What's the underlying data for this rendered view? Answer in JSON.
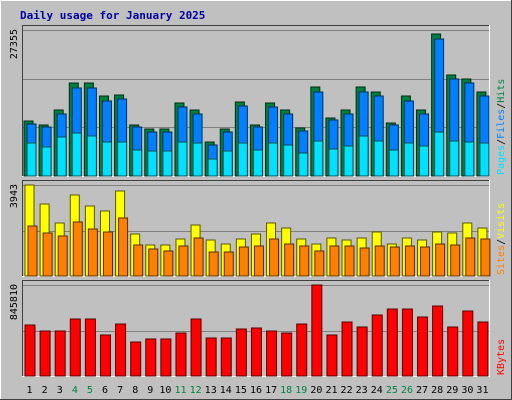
{
  "title": "Daily usage for January 2025",
  "colors": {
    "background": "#c0c0c0",
    "panel": "#c0c0c0",
    "grid": "#808080",
    "title": "#0000a0",
    "hits": "#008040",
    "files": "#0080ff",
    "pages": "#00e0ff",
    "visits": "#ffff00",
    "sites": "#ff8000",
    "kbytes": "#ff0000",
    "weekend_day": "#008040",
    "weekday": "#000000"
  },
  "chart_data": [
    {
      "type": "bar",
      "title": "Daily usage for January 2025",
      "ymax_label": "27355",
      "ylim": [
        0,
        27355
      ],
      "legend": [
        "Pages",
        "Files",
        "Hits"
      ],
      "categories": [
        "1",
        "2",
        "3",
        "4",
        "5",
        "6",
        "7",
        "8",
        "9",
        "10",
        "11",
        "12",
        "13",
        "14",
        "15",
        "16",
        "17",
        "18",
        "19",
        "20",
        "21",
        "22",
        "23",
        "24",
        "25",
        "26",
        "27",
        "28",
        "29",
        "30",
        "31"
      ],
      "series": [
        {
          "name": "Hits",
          "values": [
            10300,
            9600,
            12300,
            17400,
            17400,
            14900,
            15200,
            9600,
            8800,
            8800,
            13600,
            12300,
            6300,
            8800,
            13900,
            9600,
            13600,
            12300,
            9000,
            16600,
            10900,
            12300,
            16600,
            15700,
            10000,
            14900,
            12300,
            26600,
            19000,
            18200,
            15700
          ]
        },
        {
          "name": "Files",
          "values": [
            9800,
            9100,
            11600,
            16500,
            16500,
            14100,
            14500,
            9100,
            8300,
            8300,
            12900,
            11600,
            5900,
            8300,
            13200,
            9100,
            12900,
            11600,
            8500,
            15800,
            10400,
            11600,
            15800,
            14900,
            9500,
            14100,
            11600,
            25600,
            18200,
            17400,
            14900
          ]
        },
        {
          "name": "Pages",
          "values": [
            6200,
            5500,
            7300,
            8000,
            7500,
            6300,
            6300,
            4800,
            4600,
            4600,
            6300,
            6100,
            3100,
            4700,
            6100,
            4900,
            6200,
            5800,
            4400,
            6500,
            5000,
            5600,
            7500,
            6500,
            4900,
            6200,
            5600,
            8300,
            6500,
            6400,
            6200
          ]
        }
      ]
    },
    {
      "type": "bar",
      "ymax_label": "3943",
      "ylim": [
        0,
        3943
      ],
      "legend": [
        "Sites",
        "Visits"
      ],
      "categories": [
        "1",
        "2",
        "3",
        "4",
        "5",
        "6",
        "7",
        "8",
        "9",
        "10",
        "11",
        "12",
        "13",
        "14",
        "15",
        "16",
        "17",
        "18",
        "19",
        "20",
        "21",
        "22",
        "23",
        "24",
        "25",
        "26",
        "27",
        "28",
        "29",
        "30",
        "31"
      ],
      "series": [
        {
          "name": "Visits",
          "values": [
            3943,
            3100,
            2300,
            3500,
            3050,
            2800,
            3700,
            1800,
            1350,
            1350,
            1600,
            2200,
            1550,
            1400,
            1600,
            1800,
            2300,
            2100,
            1600,
            1400,
            1650,
            1550,
            1650,
            1900,
            1400,
            1650,
            1550,
            1900,
            1850,
            2300,
            2100
          ]
        },
        {
          "name": "Sites",
          "values": [
            2150,
            1850,
            1750,
            2350,
            2050,
            1900,
            2500,
            1350,
            1150,
            1100,
            1300,
            1650,
            1050,
            1050,
            1250,
            1300,
            1600,
            1400,
            1300,
            1100,
            1300,
            1300,
            1200,
            1300,
            1250,
            1300,
            1250,
            1400,
            1350,
            1650,
            1600
          ]
        }
      ]
    },
    {
      "type": "bar",
      "ymax_label": "845810",
      "ylim": [
        0,
        845810
      ],
      "legend": [
        "KBytes"
      ],
      "categories": [
        "1",
        "2",
        "3",
        "4",
        "5",
        "6",
        "7",
        "8",
        "9",
        "10",
        "11",
        "12",
        "13",
        "14",
        "15",
        "16",
        "17",
        "18",
        "19",
        "20",
        "21",
        "22",
        "23",
        "24",
        "25",
        "26",
        "27",
        "28",
        "29",
        "30",
        "31"
      ],
      "series": [
        {
          "name": "KBytes",
          "values": [
            470000,
            420000,
            420000,
            530000,
            530000,
            380000,
            480000,
            320000,
            340000,
            340000,
            400000,
            530000,
            350000,
            350000,
            440000,
            450000,
            420000,
            400000,
            480000,
            845810,
            380000,
            500000,
            460000,
            570000,
            620000,
            620000,
            550000,
            650000,
            460000,
            600000,
            500000
          ]
        }
      ]
    }
  ]
}
